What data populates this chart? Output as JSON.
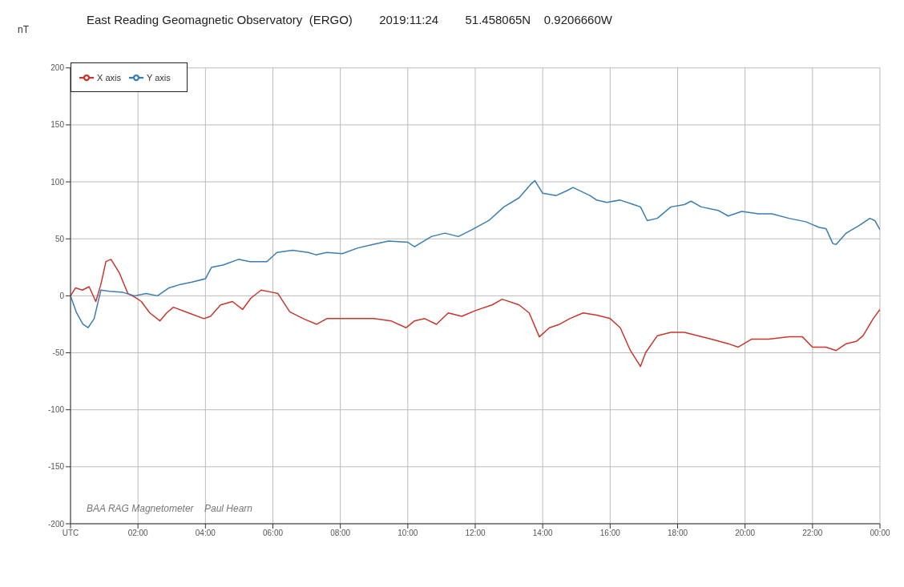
{
  "chart_data": {
    "type": "line",
    "title": "East Reading Geomagnetic Observatory  (ERGO)        2019:11:24        51.458065N    0.9206660W",
    "ylabel": "nT",
    "annotations": [
      "BAA RAG Magnetometer    Paul Hearn"
    ],
    "xlim": [
      0,
      24
    ],
    "xticks": [
      {
        "value": 0,
        "label": "UTC"
      },
      {
        "value": 2,
        "label": "02:00"
      },
      {
        "value": 4,
        "label": "04:00"
      },
      {
        "value": 6,
        "label": "06:00"
      },
      {
        "value": 8,
        "label": "08:00"
      },
      {
        "value": 10,
        "label": "10:00"
      },
      {
        "value": 12,
        "label": "12:00"
      },
      {
        "value": 14,
        "label": "14:00"
      },
      {
        "value": 16,
        "label": "16:00"
      },
      {
        "value": 18,
        "label": "18:00"
      },
      {
        "value": 20,
        "label": "20:00"
      },
      {
        "value": 22,
        "label": "22:00"
      },
      {
        "value": 24,
        "label": "00:00"
      }
    ],
    "ylim": [
      -200,
      200
    ],
    "yticks": [
      -200,
      -150,
      -100,
      -50,
      0,
      50,
      100,
      150,
      200
    ],
    "grid": true,
    "legend": "top left",
    "marker": "none",
    "line_style": "solid",
    "series": [
      {
        "name": "X axis",
        "color": "#c8362c",
        "x": [
          0,
          0.15,
          0.35,
          0.55,
          0.75,
          0.9,
          1.05,
          1.2,
          1.45,
          1.7,
          1.9,
          2.1,
          2.35,
          2.65,
          2.85,
          3.05,
          3.5,
          3.95,
          4.15,
          4.45,
          4.8,
          5.1,
          5.35,
          5.65,
          6.0,
          6.15,
          6.5,
          6.9,
          7.3,
          7.6,
          8.0,
          8.5,
          9.0,
          9.5,
          9.95,
          10.2,
          10.5,
          10.85,
          11.2,
          11.6,
          12.0,
          12.5,
          12.8,
          13.3,
          13.6,
          13.9,
          14.2,
          14.5,
          14.8,
          15.2,
          15.6,
          16.0,
          16.3,
          16.6,
          16.9,
          17.05,
          17.4,
          17.8,
          18.2,
          18.6,
          19.0,
          19.5,
          19.8,
          20.2,
          20.7,
          21.3,
          21.7,
          22.0,
          22.4,
          22.7,
          23.0,
          23.3,
          23.5,
          23.8,
          24
        ],
        "values": [
          0,
          7,
          5,
          8,
          -5,
          10,
          30,
          32,
          20,
          2,
          -1,
          -5,
          -15,
          -22,
          -15,
          -10,
          -15,
          -20,
          -18,
          -8,
          -5,
          -12,
          -2,
          5,
          3,
          2,
          -14,
          -20,
          -25,
          -20,
          -20,
          -20,
          -20,
          -22,
          -28,
          -22,
          -20,
          -25,
          -15,
          -18,
          -13,
          -8,
          -3,
          -8,
          -15,
          -36,
          -28,
          -25,
          -20,
          -15,
          -17,
          -20,
          -28,
          -48,
          -62,
          -50,
          -35,
          -32,
          -32,
          -35,
          -38,
          -42,
          -45,
          -38,
          -38,
          -36,
          -36,
          -45,
          -45,
          -48,
          -42,
          -40,
          -35,
          -20,
          -12
        ]
      },
      {
        "name": "Y axis",
        "color": "#3a7db3",
        "x": [
          0,
          0.18,
          0.37,
          0.52,
          0.7,
          0.9,
          1.16,
          1.55,
          1.9,
          2.24,
          2.58,
          2.92,
          3.26,
          3.6,
          4.0,
          4.18,
          4.52,
          4.98,
          5.32,
          5.82,
          6.12,
          6.58,
          7.05,
          7.27,
          7.6,
          8.06,
          8.52,
          8.97,
          9.43,
          10.0,
          10.2,
          10.7,
          11.1,
          11.5,
          11.9,
          12.4,
          12.85,
          13.3,
          13.65,
          13.77,
          14.0,
          14.4,
          14.7,
          14.9,
          15.4,
          15.6,
          15.9,
          16.3,
          16.7,
          16.9,
          17.1,
          17.4,
          17.8,
          18.2,
          18.4,
          18.7,
          19.2,
          19.5,
          19.9,
          20.4,
          20.8,
          21.3,
          21.8,
          22.2,
          22.4,
          22.6,
          22.7,
          23.0,
          23.4,
          23.7,
          23.85,
          24
        ],
        "values": [
          0,
          -15,
          -25,
          -28,
          -20,
          5,
          4,
          3,
          0,
          2,
          0,
          7,
          10,
          12,
          15,
          25,
          27,
          32,
          30,
          30,
          38,
          40,
          38,
          36,
          38,
          37,
          42,
          45,
          48,
          47,
          43,
          52,
          55,
          52,
          58,
          66,
          78,
          86,
          98,
          101,
          90,
          88,
          92,
          95,
          88,
          84,
          82,
          84,
          80,
          78,
          66,
          68,
          78,
          80,
          83,
          78,
          75,
          70,
          74,
          72,
          72,
          68,
          65,
          60,
          59,
          46,
          45,
          55,
          62,
          68,
          66,
          58
        ]
      }
    ]
  }
}
